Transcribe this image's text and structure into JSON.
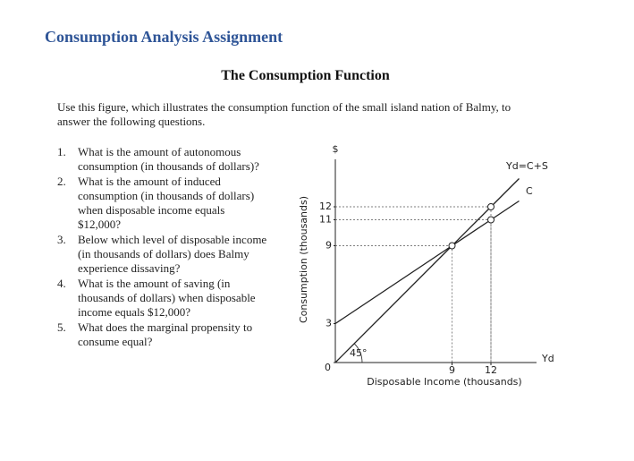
{
  "header": {
    "title": "Consumption Analysis Assignment",
    "subtitle": "The Consumption Function"
  },
  "intro": [
    "Use this figure, which illustrates the consumption function of the small island nation of Balmy, to",
    "answer the following questions."
  ],
  "questions": [
    {
      "number": "1.",
      "lines": [
        "What is the amount of autonomous",
        "consumption (in thousands of dollars)?"
      ]
    },
    {
      "number": "2.",
      "lines": [
        "What is the amount of induced",
        "consumption (in thousands of dollars)",
        "when disposable income equals",
        "$12,000?"
      ]
    },
    {
      "number": "3.",
      "lines": [
        "Below which level of disposable income",
        "(in thousands of dollars) does Balmy",
        "experience dissaving?"
      ]
    },
    {
      "number": "4.",
      "lines": [
        "What is the amount of saving (in",
        "thousands of dollars) when disposable",
        "income equals $12,000?"
      ]
    },
    {
      "number": "5.",
      "lines": [
        "What does the marginal propensity to",
        "consume equal?"
      ]
    }
  ],
  "figure": {
    "y_symbol": "$",
    "y_axis_title": "Consumption (thousands)",
    "x_axis_title": "Disposable Income (thousands)",
    "x_end_label": "Yd",
    "angle_label": "45°",
    "xlim": [
      0,
      15
    ],
    "ylim": [
      0,
      15
    ],
    "xticks": [
      9,
      12
    ],
    "yticks": [
      0,
      3,
      9,
      11,
      12
    ],
    "series": [
      {
        "name": "Yd=C+S",
        "x": [
          0,
          9,
          12
        ],
        "values": [
          0,
          9,
          12
        ]
      },
      {
        "name": "C",
        "x": [
          0,
          9,
          12
        ],
        "values": [
          3,
          9,
          11
        ]
      }
    ],
    "points": {
      "x": [
        9,
        12,
        12
      ],
      "values": [
        9,
        11,
        12
      ]
    }
  }
}
